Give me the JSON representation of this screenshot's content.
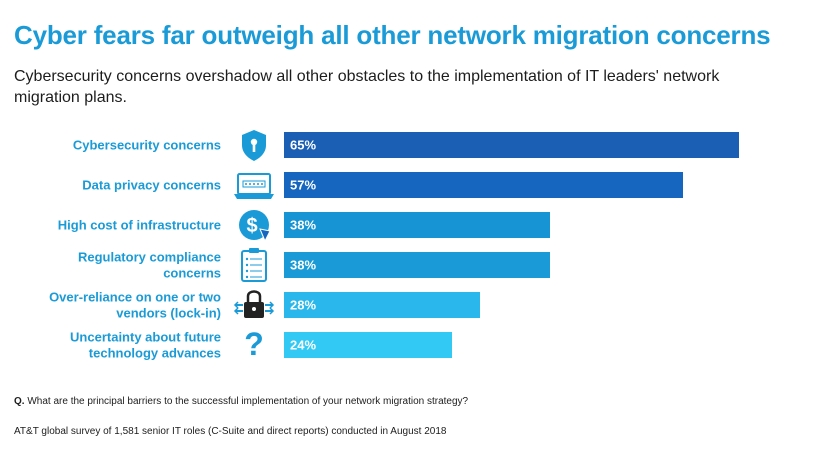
{
  "title": "Cyber fears far outweigh all other network migration concerns",
  "subtitle": "Cybersecurity concerns overshadow all other obstacles to the implementation of IT leaders' network migration plans.",
  "chart_data": {
    "type": "bar",
    "orientation": "horizontal",
    "categories": [
      "Cybersecurity concerns",
      "Data privacy concerns",
      "High cost of infrastructure",
      "Regulatory compliance concerns",
      "Over-reliance on one or two vendors (lock-in)",
      "Uncertainty about future technology advances"
    ],
    "category_lines": [
      [
        "Cybersecurity concerns"
      ],
      [
        "Data privacy concerns"
      ],
      [
        "High cost of infrastructure"
      ],
      [
        "Regulatory compliance",
        "concerns"
      ],
      [
        "Over-reliance on one or two",
        "vendors (lock-in)"
      ],
      [
        "Uncertainty about future",
        "technology advances"
      ]
    ],
    "values": [
      65,
      57,
      38,
      38,
      28,
      24
    ],
    "value_labels": [
      "65%",
      "57%",
      "38%",
      "38%",
      "28%",
      "24%"
    ],
    "unit": "%",
    "bar_colors": [
      "#1a5fb4",
      "#1666bf",
      "#1794d4",
      "#1a9bd7",
      "#2ab8ec",
      "#33c9f5"
    ],
    "icons": [
      "shield-icon",
      "password-screen-icon",
      "dollar-globe-icon",
      "clipboard-icon",
      "padlock-icon",
      "question-mark-icon"
    ],
    "icon_color": "#1a9bd7",
    "label_color": "#1a9bd7",
    "grid": false,
    "legend": "none"
  },
  "question_prefix": "Q.",
  "question": " What are the principal barriers to the successful implementation of your network migration strategy?",
  "source": "AT&T global survey of 1,581 senior IT roles (C-Suite and direct reports) conducted in August 2018"
}
